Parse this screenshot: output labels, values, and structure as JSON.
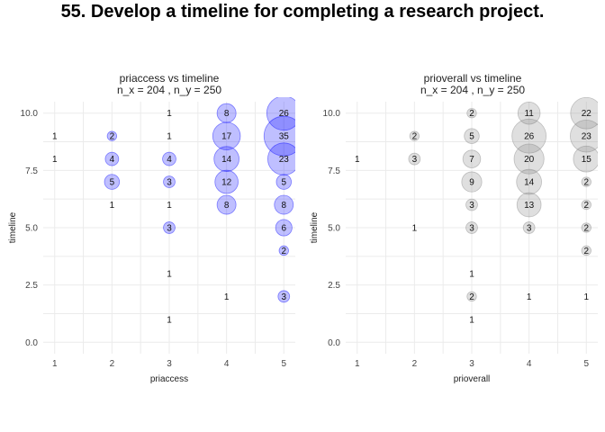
{
  "page_title": "55. Develop a timeline for completing a research project.",
  "chart_data": [
    {
      "type": "scatter",
      "title_line1": "priaccess vs timeline",
      "title_line2": "n_x = 204 , n_y = 250",
      "xlabel": "priaccess",
      "ylabel": "timeline",
      "xlim": [
        0.8,
        5.2
      ],
      "ylim": [
        -0.5,
        10.5
      ],
      "x_ticks": [
        "1",
        "2",
        "3",
        "4",
        "5"
      ],
      "y_ticks": [
        "0.0",
        "2.5",
        "5.0",
        "7.5",
        "10.0"
      ],
      "color": "#0000ff",
      "points": [
        {
          "x": 1,
          "y": 9,
          "n": 1
        },
        {
          "x": 1,
          "y": 8,
          "n": 1
        },
        {
          "x": 2,
          "y": 9,
          "n": 2
        },
        {
          "x": 2,
          "y": 8,
          "n": 4
        },
        {
          "x": 2,
          "y": 7,
          "n": 5
        },
        {
          "x": 2,
          "y": 6,
          "n": 1
        },
        {
          "x": 3,
          "y": 10,
          "n": 1
        },
        {
          "x": 3,
          "y": 9,
          "n": 1
        },
        {
          "x": 3,
          "y": 8,
          "n": 4
        },
        {
          "x": 3,
          "y": 7,
          "n": 3
        },
        {
          "x": 3,
          "y": 6,
          "n": 1
        },
        {
          "x": 3,
          "y": 5,
          "n": 3
        },
        {
          "x": 3,
          "y": 3,
          "n": 1
        },
        {
          "x": 3,
          "y": 1,
          "n": 1
        },
        {
          "x": 4,
          "y": 10,
          "n": 8
        },
        {
          "x": 4,
          "y": 9,
          "n": 17
        },
        {
          "x": 4,
          "y": 8,
          "n": 14
        },
        {
          "x": 4,
          "y": 7,
          "n": 12
        },
        {
          "x": 4,
          "y": 6,
          "n": 8
        },
        {
          "x": 4,
          "y": 2,
          "n": 1
        },
        {
          "x": 5,
          "y": 10,
          "n": 26
        },
        {
          "x": 5,
          "y": 9,
          "n": 35
        },
        {
          "x": 5,
          "y": 8,
          "n": 23
        },
        {
          "x": 5,
          "y": 7,
          "n": 5
        },
        {
          "x": 5,
          "y": 6,
          "n": 8
        },
        {
          "x": 5,
          "y": 5,
          "n": 6
        },
        {
          "x": 5,
          "y": 4,
          "n": 2
        },
        {
          "x": 5,
          "y": 2,
          "n": 3
        }
      ]
    },
    {
      "type": "scatter",
      "title_line1": "prioverall vs timeline",
      "title_line2": "n_x = 204 , n_y = 250",
      "xlabel": "prioverall",
      "ylabel": "timeline",
      "xlim": [
        0.8,
        5.2
      ],
      "ylim": [
        -0.5,
        10.5
      ],
      "x_ticks": [
        "1",
        "2",
        "3",
        "4",
        "5"
      ],
      "y_ticks": [
        "0.0",
        "2.5",
        "5.0",
        "7.5",
        "10.0"
      ],
      "color": "#808080",
      "points": [
        {
          "x": 1,
          "y": 8,
          "n": 1
        },
        {
          "x": 2,
          "y": 9,
          "n": 2
        },
        {
          "x": 2,
          "y": 8,
          "n": 3
        },
        {
          "x": 2,
          "y": 5,
          "n": 1
        },
        {
          "x": 3,
          "y": 10,
          "n": 2
        },
        {
          "x": 3,
          "y": 9,
          "n": 5
        },
        {
          "x": 3,
          "y": 8,
          "n": 7
        },
        {
          "x": 3,
          "y": 7,
          "n": 9
        },
        {
          "x": 3,
          "y": 6,
          "n": 3
        },
        {
          "x": 3,
          "y": 5,
          "n": 3
        },
        {
          "x": 3,
          "y": 3,
          "n": 1
        },
        {
          "x": 3,
          "y": 2,
          "n": 2
        },
        {
          "x": 3,
          "y": 1,
          "n": 1
        },
        {
          "x": 4,
          "y": 10,
          "n": 11
        },
        {
          "x": 4,
          "y": 9,
          "n": 26
        },
        {
          "x": 4,
          "y": 8,
          "n": 20
        },
        {
          "x": 4,
          "y": 7,
          "n": 14
        },
        {
          "x": 4,
          "y": 6,
          "n": 13
        },
        {
          "x": 4,
          "y": 5,
          "n": 3
        },
        {
          "x": 4,
          "y": 2,
          "n": 1
        },
        {
          "x": 5,
          "y": 10,
          "n": 22
        },
        {
          "x": 5,
          "y": 9,
          "n": 23
        },
        {
          "x": 5,
          "y": 8,
          "n": 15
        },
        {
          "x": 5,
          "y": 7,
          "n": 2
        },
        {
          "x": 5,
          "y": 6,
          "n": 2
        },
        {
          "x": 5,
          "y": 5,
          "n": 2
        },
        {
          "x": 5,
          "y": 4,
          "n": 2
        },
        {
          "x": 5,
          "y": 2,
          "n": 1
        }
      ]
    }
  ]
}
